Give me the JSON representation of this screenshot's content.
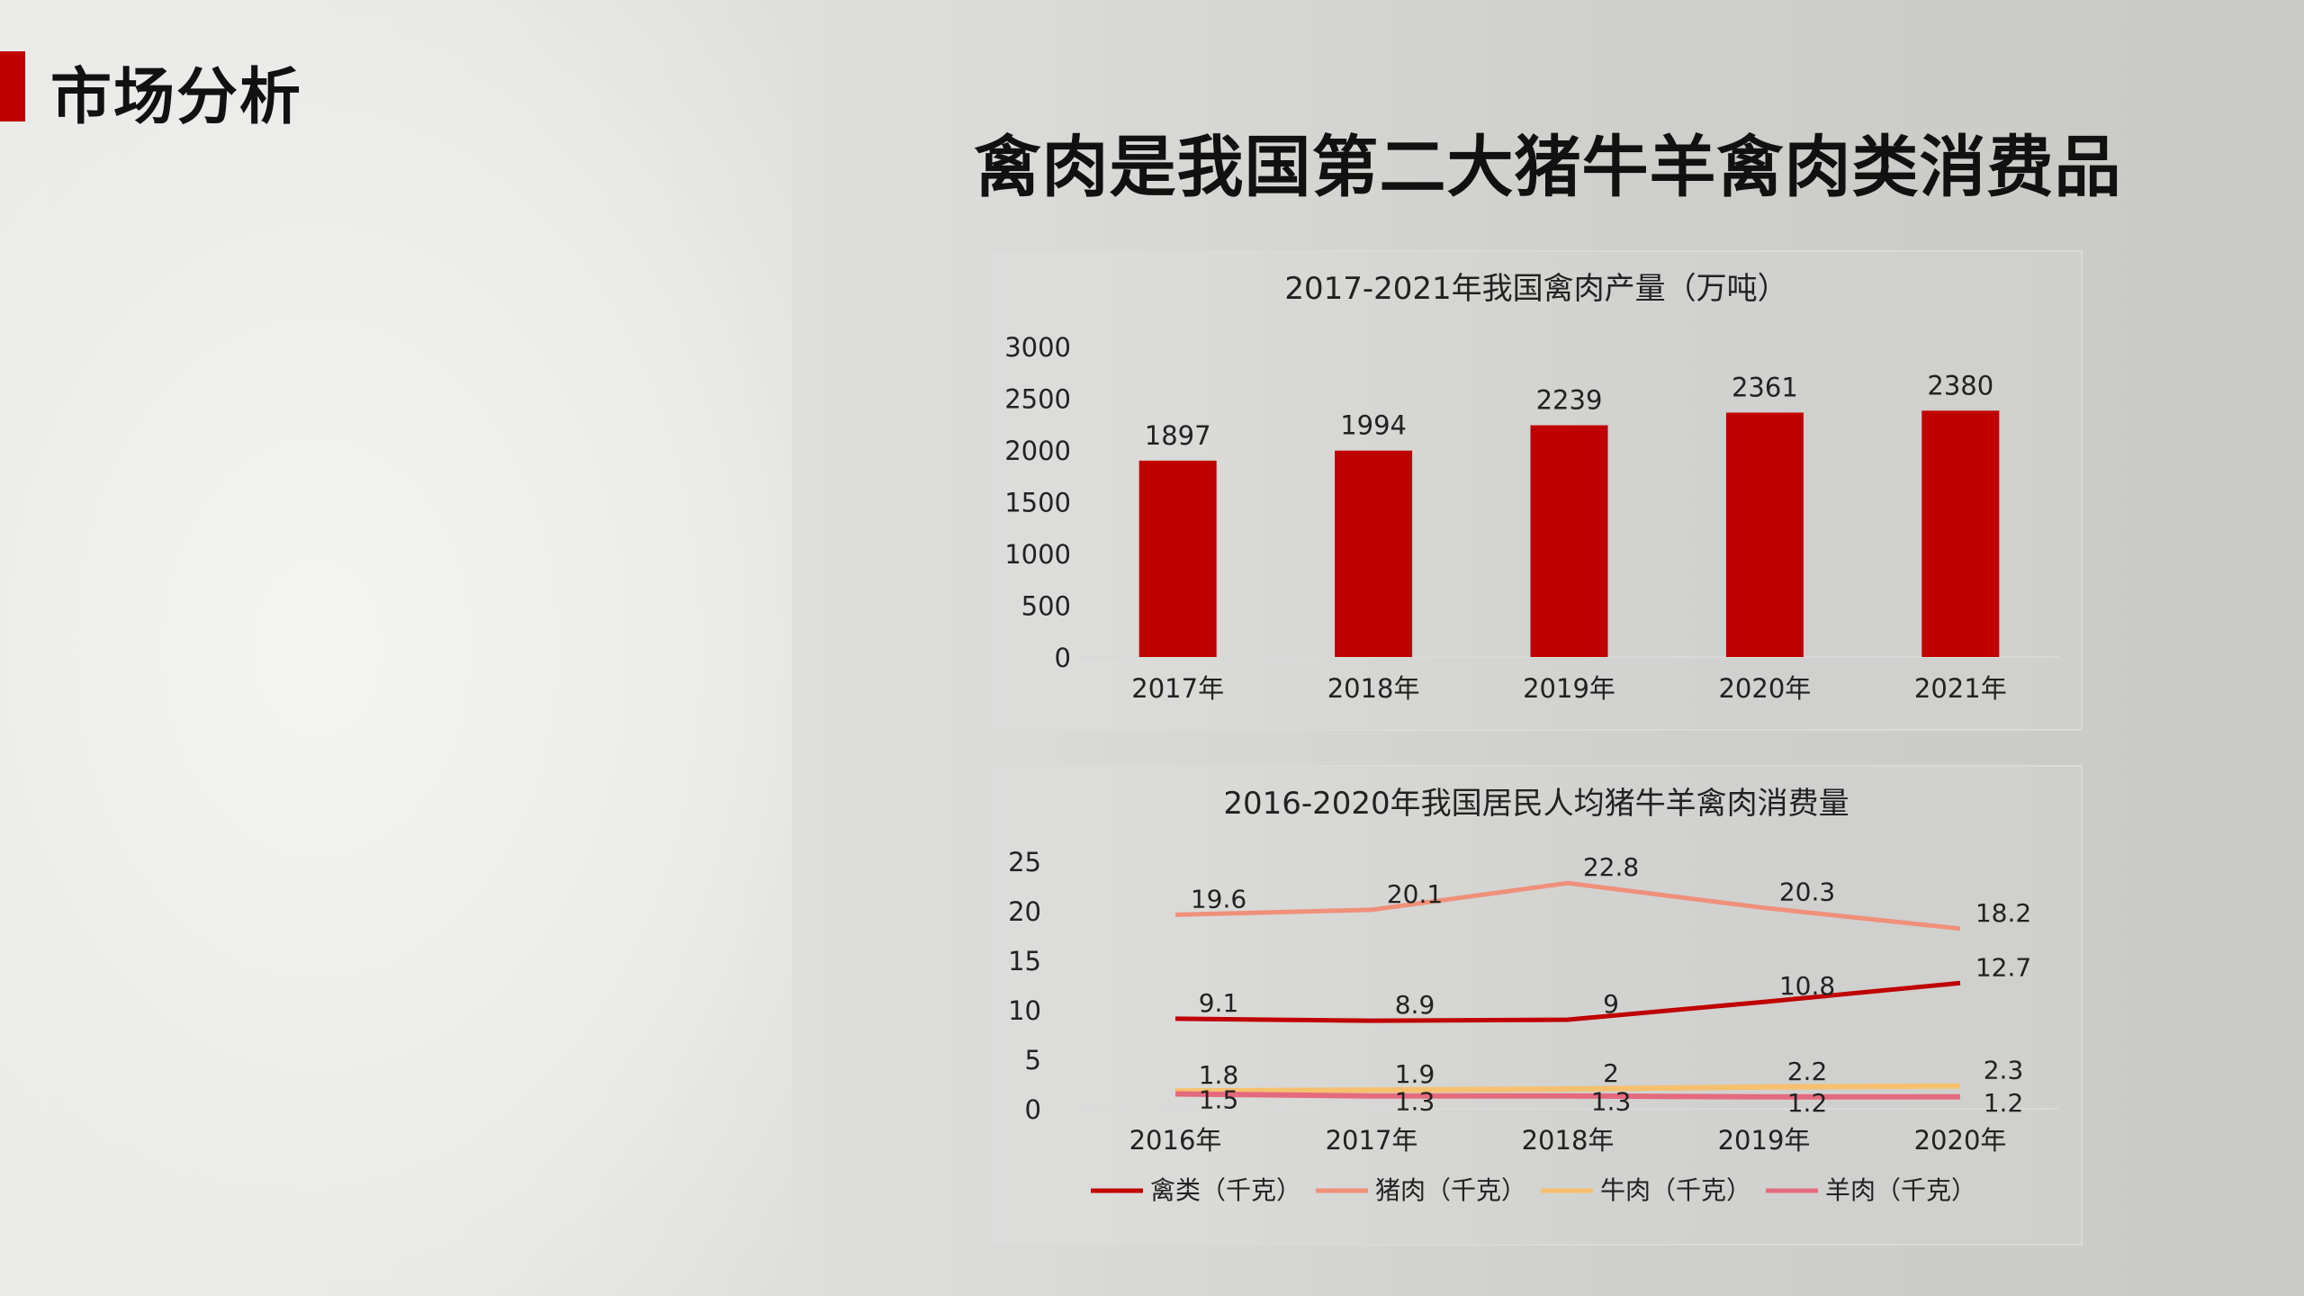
{
  "page": {
    "title": "市场分析",
    "heading": "禽肉是我国第二大猪牛羊禽肉类消费品"
  },
  "colors": {
    "accent": "#c00000",
    "bar": "#c00000",
    "poultry": "#c00000",
    "pork": "#f0907a",
    "beef": "#f6c06e",
    "mutton": "#e46a7e"
  },
  "chart_data": [
    {
      "type": "bar",
      "title": "2017-2021年我国禽肉产量（万吨）",
      "categories": [
        "2017年",
        "2018年",
        "2019年",
        "2020年",
        "2021年"
      ],
      "values": [
        1897,
        1994,
        2239,
        2361,
        2380
      ],
      "ylim": [
        0,
        3000
      ],
      "yticks": [
        0,
        500,
        1000,
        1500,
        2000,
        2500,
        3000
      ],
      "data_labels": true,
      "grid": false,
      "xlabel": "",
      "ylabel": ""
    },
    {
      "type": "line",
      "title": "2016-2020年我国居民人均猪牛羊禽肉消费量",
      "categories": [
        "2016年",
        "2017年",
        "2018年",
        "2019年",
        "2020年"
      ],
      "series": [
        {
          "name": "禽类（千克）",
          "values": [
            9.1,
            8.9,
            9,
            10.8,
            12.7
          ]
        },
        {
          "name": "猪肉（千克）",
          "values": [
            19.6,
            20.1,
            22.8,
            20.3,
            18.2
          ]
        },
        {
          "name": "牛肉（千克）",
          "values": [
            1.8,
            1.9,
            2,
            2.2,
            2.3
          ]
        },
        {
          "name": "羊肉（千克）",
          "values": [
            1.5,
            1.3,
            1.3,
            1.2,
            1.2
          ]
        }
      ],
      "ylim": [
        0,
        25
      ],
      "yticks": [
        0,
        5,
        10,
        15,
        20,
        25
      ],
      "legend": "bottom",
      "data_labels": true,
      "grid": false,
      "xlabel": "",
      "ylabel": ""
    }
  ]
}
